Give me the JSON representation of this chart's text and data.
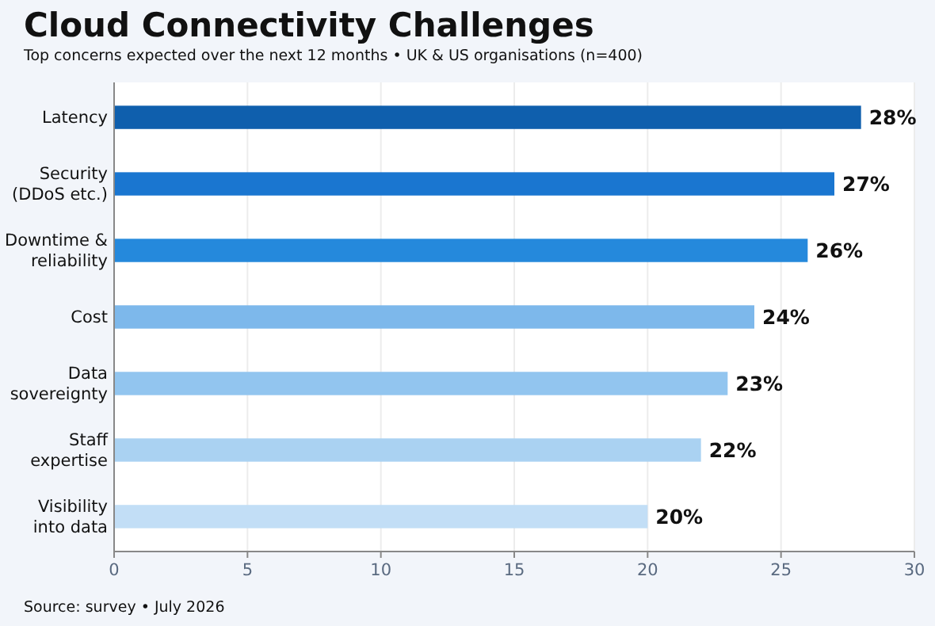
{
  "chart_data": {
    "type": "bar",
    "orientation": "horizontal",
    "title": "Cloud Connectivity Challenges",
    "subtitle": "Top concerns expected over the next 12 months • UK & US organisations (n=400)",
    "categories": [
      "Latency",
      "Security\n(DDoS etc.)",
      "Downtime &\nreliability",
      "Cost",
      "Data\nsovereignty",
      "Staff\nexpertise",
      "Visibility\ninto data"
    ],
    "values": [
      28,
      27,
      26,
      24,
      23,
      22,
      20
    ],
    "colors": [
      "#0f5fad",
      "#1a76d0",
      "#2589dc",
      "#7db8eb",
      "#92c5ef",
      "#aad2f2",
      "#c2def6"
    ],
    "value_labels": [
      "28%",
      "27%",
      "26%",
      "24%",
      "23%",
      "22%",
      "20%"
    ],
    "xlim": [
      0,
      30
    ],
    "xticks": [
      0,
      5,
      10,
      15,
      20,
      25,
      30
    ],
    "grid": "x",
    "annotations": [
      "Source: survey • July 2026"
    ]
  }
}
